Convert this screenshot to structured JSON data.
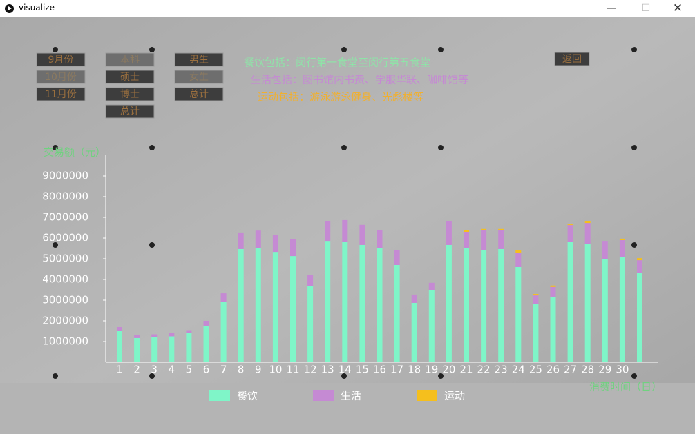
{
  "window": {
    "title": "visualize"
  },
  "buttons": {
    "months": [
      "9月份",
      "10月份",
      "11月份"
    ],
    "degrees": [
      "本科",
      "硕士",
      "博士",
      "总计"
    ],
    "genders": [
      "男生",
      "女生",
      "总计"
    ],
    "back": "返回"
  },
  "notes": [
    "餐饮包括：闵行第一食堂至闵行第五食堂",
    "生活包括：图书馆内书费、学服华联、咖啡馆等",
    "运动包括：游泳游泳健身、光彪楼等"
  ],
  "chart_data": {
    "type": "bar",
    "stacked": true,
    "y_label": "交易额（元）",
    "x_label": "消费时间（日）",
    "categories": [
      "1",
      "2",
      "3",
      "4",
      "5",
      "6",
      "7",
      "8",
      "9",
      "10",
      "11",
      "12",
      "13",
      "14",
      "15",
      "16",
      "17",
      "18",
      "19",
      "20",
      "21",
      "22",
      "23",
      "24",
      "25",
      "26",
      "27",
      "28",
      "29",
      "30",
      null
    ],
    "series": [
      {
        "name": "餐饮",
        "color": "#7ff5c8",
        "values": [
          1500000,
          1170000,
          1200000,
          1250000,
          1400000,
          1770000,
          2900000,
          5470000,
          5530000,
          5330000,
          5130000,
          3700000,
          5830000,
          5800000,
          5670000,
          5530000,
          4700000,
          2870000,
          3470000,
          5670000,
          5530000,
          5400000,
          5470000,
          4600000,
          2800000,
          3170000,
          5800000,
          5700000,
          5000000,
          5100000,
          4300000
        ]
      },
      {
        "name": "生活",
        "color": "#c58ad3",
        "values": [
          200000,
          130000,
          150000,
          150000,
          150000,
          230000,
          430000,
          800000,
          830000,
          830000,
          830000,
          500000,
          970000,
          1070000,
          970000,
          870000,
          700000,
          400000,
          370000,
          1130000,
          770000,
          970000,
          900000,
          700000,
          430000,
          470000,
          830000,
          1030000,
          830000,
          800000,
          630000
        ]
      },
      {
        "name": "运动",
        "color": "#f5bf1d",
        "values": [
          0,
          0,
          0,
          0,
          0,
          0,
          0,
          0,
          0,
          0,
          0,
          0,
          0,
          0,
          0,
          0,
          0,
          0,
          0,
          30000,
          70000,
          70000,
          70000,
          100000,
          70000,
          70000,
          70000,
          70000,
          0,
          70000,
          100000
        ]
      }
    ],
    "ylim": [
      0,
      10000000
    ],
    "yticks": [
      1000000,
      2000000,
      3000000,
      4000000,
      5000000,
      6000000,
      7000000,
      8000000,
      9000000
    ]
  }
}
